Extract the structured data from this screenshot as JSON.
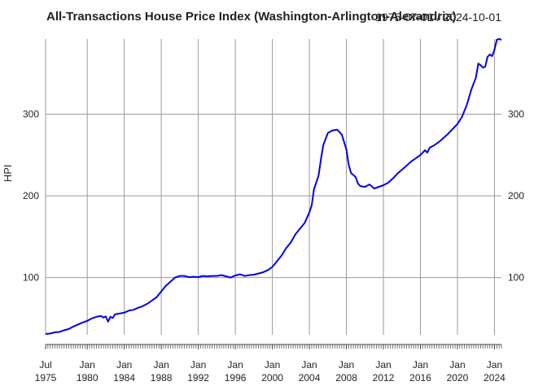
{
  "chart_data": {
    "type": "line",
    "title": "All-Transactions House Price Index (Washington-Arlington-Alexandria)",
    "date_range": "1975-07-01 / 2024-10-01",
    "ylabel": "HPI",
    "xlabel": "",
    "xlim": [
      "1975-07-01",
      "2024-10-01"
    ],
    "ylim": [
      30,
      392
    ],
    "y_ticks": [
      100,
      200,
      300
    ],
    "y_tick_labels": [
      "100",
      "200",
      "300"
    ],
    "x_ticks": [
      {
        "date": "1975-07-01",
        "month": "Jul",
        "year": "1975"
      },
      {
        "date": "1980-01-01",
        "month": "Jan",
        "year": "1980"
      },
      {
        "date": "1984-01-01",
        "month": "Jan",
        "year": "1984"
      },
      {
        "date": "1988-01-01",
        "month": "Jan",
        "year": "1988"
      },
      {
        "date": "1992-01-01",
        "month": "Jan",
        "year": "1992"
      },
      {
        "date": "1996-01-01",
        "month": "Jan",
        "year": "1996"
      },
      {
        "date": "2000-01-01",
        "month": "Jan",
        "year": "2000"
      },
      {
        "date": "2004-01-01",
        "month": "Jan",
        "year": "2004"
      },
      {
        "date": "2008-01-01",
        "month": "Jan",
        "year": "2008"
      },
      {
        "date": "2012-01-01",
        "month": "Jan",
        "year": "2012"
      },
      {
        "date": "2016-01-01",
        "month": "Jan",
        "year": "2016"
      },
      {
        "date": "2020-01-01",
        "month": "Jan",
        "year": "2020"
      },
      {
        "date": "2024-01-01",
        "month": "Jan",
        "year": "2024"
      }
    ],
    "grid": true,
    "series": [
      {
        "name": "",
        "color": "#0000ee",
        "points": [
          [
            "1975-07-01",
            31
          ],
          [
            "1976-01-01",
            31.5
          ],
          [
            "1976-07-01",
            33
          ],
          [
            "1977-01-01",
            33.5
          ],
          [
            "1977-07-01",
            35.5
          ],
          [
            "1978-01-01",
            37
          ],
          [
            "1978-07-01",
            40
          ],
          [
            "1979-01-01",
            42.5
          ],
          [
            "1979-07-01",
            45
          ],
          [
            "1980-01-01",
            47
          ],
          [
            "1980-07-01",
            50
          ],
          [
            "1981-01-01",
            52
          ],
          [
            "1981-07-01",
            53
          ],
          [
            "1981-10-01",
            51
          ],
          [
            "1982-01-01",
            52.5
          ],
          [
            "1982-04-01",
            46
          ],
          [
            "1982-07-01",
            52
          ],
          [
            "1982-10-01",
            50.5
          ],
          [
            "1983-01-01",
            55
          ],
          [
            "1983-07-01",
            56
          ],
          [
            "1984-01-01",
            57
          ],
          [
            "1984-07-01",
            59.5
          ],
          [
            "1985-01-01",
            60.5
          ],
          [
            "1985-07-01",
            63
          ],
          [
            "1986-01-01",
            65
          ],
          [
            "1986-07-01",
            68
          ],
          [
            "1987-01-01",
            72
          ],
          [
            "1987-07-01",
            76
          ],
          [
            "1988-01-01",
            83
          ],
          [
            "1988-07-01",
            90
          ],
          [
            "1989-01-01",
            95
          ],
          [
            "1989-07-01",
            100
          ],
          [
            "1990-01-01",
            102
          ],
          [
            "1990-07-01",
            102
          ],
          [
            "1991-01-01",
            100.5
          ],
          [
            "1991-07-01",
            101
          ],
          [
            "1992-01-01",
            100.5
          ],
          [
            "1992-07-01",
            102
          ],
          [
            "1993-01-01",
            101.5
          ],
          [
            "1993-07-01",
            102
          ],
          [
            "1994-01-01",
            102
          ],
          [
            "1994-07-01",
            103
          ],
          [
            "1995-01-01",
            101.5
          ],
          [
            "1995-07-01",
            100
          ],
          [
            "1996-01-01",
            102.5
          ],
          [
            "1996-07-01",
            104
          ],
          [
            "1997-01-01",
            102
          ],
          [
            "1997-07-01",
            103
          ],
          [
            "1998-01-01",
            103.5
          ],
          [
            "1998-07-01",
            105
          ],
          [
            "1999-01-01",
            106.5
          ],
          [
            "1999-07-01",
            109
          ],
          [
            "2000-01-01",
            113
          ],
          [
            "2000-07-01",
            120
          ],
          [
            "2001-01-01",
            127
          ],
          [
            "2001-07-01",
            136
          ],
          [
            "2002-01-01",
            143
          ],
          [
            "2002-07-01",
            153
          ],
          [
            "2003-01-01",
            160
          ],
          [
            "2003-07-01",
            167
          ],
          [
            "2004-01-01",
            180
          ],
          [
            "2004-04-01",
            188
          ],
          [
            "2004-07-01",
            208
          ],
          [
            "2005-01-01",
            225
          ],
          [
            "2005-04-01",
            245
          ],
          [
            "2005-07-01",
            262
          ],
          [
            "2006-01-01",
            277
          ],
          [
            "2006-07-01",
            280
          ],
          [
            "2007-01-01",
            281
          ],
          [
            "2007-07-01",
            275
          ],
          [
            "2008-01-01",
            257
          ],
          [
            "2008-04-01",
            238
          ],
          [
            "2008-07-01",
            228
          ],
          [
            "2009-01-01",
            223
          ],
          [
            "2009-04-01",
            215
          ],
          [
            "2009-07-01",
            212
          ],
          [
            "2010-01-01",
            211
          ],
          [
            "2010-07-01",
            214
          ],
          [
            "2011-01-01",
            209
          ],
          [
            "2011-07-01",
            211
          ],
          [
            "2012-01-01",
            213
          ],
          [
            "2012-07-01",
            216
          ],
          [
            "2013-01-01",
            221
          ],
          [
            "2013-07-01",
            227
          ],
          [
            "2014-01-01",
            232
          ],
          [
            "2014-07-01",
            237
          ],
          [
            "2015-01-01",
            242
          ],
          [
            "2015-07-01",
            246
          ],
          [
            "2016-01-01",
            250
          ],
          [
            "2016-07-01",
            256
          ],
          [
            "2016-10-01",
            253
          ],
          [
            "2017-01-01",
            259
          ],
          [
            "2017-07-01",
            262
          ],
          [
            "2018-01-01",
            266
          ],
          [
            "2018-07-01",
            271
          ],
          [
            "2019-01-01",
            276
          ],
          [
            "2019-07-01",
            282
          ],
          [
            "2020-01-01",
            288
          ],
          [
            "2020-07-01",
            297
          ],
          [
            "2021-01-01",
            311
          ],
          [
            "2021-07-01",
            330
          ],
          [
            "2022-01-01",
            345
          ],
          [
            "2022-04-01",
            362
          ],
          [
            "2022-07-01",
            360
          ],
          [
            "2022-10-01",
            357
          ],
          [
            "2023-01-01",
            358
          ],
          [
            "2023-04-01",
            370
          ],
          [
            "2023-07-01",
            373
          ],
          [
            "2023-10-01",
            371
          ],
          [
            "2024-01-01",
            379
          ],
          [
            "2024-04-01",
            391
          ],
          [
            "2024-07-01",
            392
          ],
          [
            "2024-10-01",
            391
          ]
        ]
      }
    ]
  }
}
